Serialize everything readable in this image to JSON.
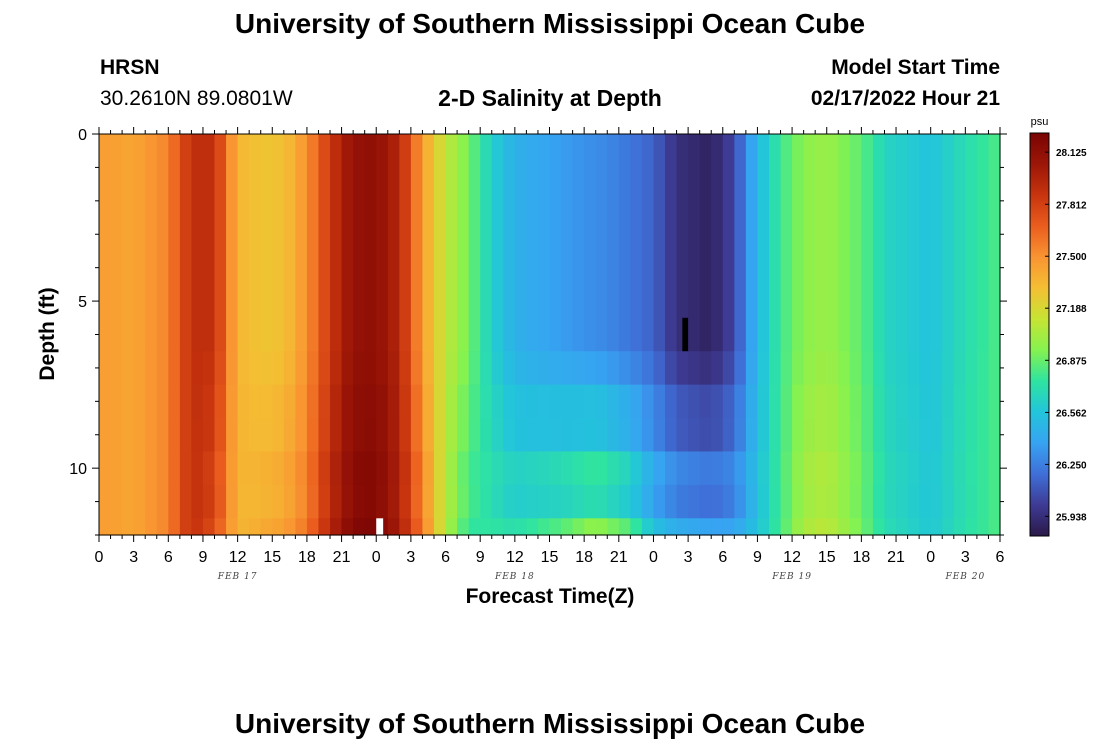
{
  "header": {
    "title": "University of Southern Mississippi Ocean Cube",
    "station": "HRSN",
    "coords": "30.2610N  89.0801W",
    "plot_title": "2-D Salinity at Depth",
    "model_start_label": "Model Start Time",
    "model_start_value": "02/17/2022 Hour 21"
  },
  "footer": {
    "title": "University of Southern Mississippi Ocean Cube"
  },
  "colors": {
    "stops": [
      "#2a1848",
      "#3e3b94",
      "#3f6fd8",
      "#37a3f2",
      "#22c5da",
      "#2fe4a0",
      "#86f24f",
      "#c6e434",
      "#f4bf33",
      "#f99432",
      "#ea5d1e",
      "#c7340e",
      "#9c1607",
      "#7a0403"
    ]
  },
  "chart_data": {
    "type": "heatmap",
    "title": "2-D Salinity at Depth",
    "xlabel": "Forecast Time(Z)",
    "ylabel": "Depth (ft)",
    "colorbar_unit": "psu",
    "value_range": [
      25.82,
      28.24
    ],
    "colorbar_ticks": [
      "28.125",
      "27.812",
      "27.500",
      "27.188",
      "26.875",
      "26.562",
      "26.250",
      "25.938"
    ],
    "x_ticks": [
      "0",
      "3",
      "6",
      "9",
      "12",
      "15",
      "18",
      "21",
      "0",
      "3",
      "6",
      "9",
      "12",
      "15",
      "18",
      "21",
      "0",
      "3",
      "6",
      "9",
      "12",
      "15",
      "18",
      "21",
      "0",
      "3",
      "6"
    ],
    "date_labels": [
      {
        "label": "FEB 17",
        "hour": 12
      },
      {
        "label": "FEB 18",
        "hour": 36
      },
      {
        "label": "FEB 19",
        "hour": 60
      },
      {
        "label": "FEB 20",
        "hour": 75
      }
    ],
    "x_range_hours": [
      0,
      78
    ],
    "y_ticks": [
      "0",
      "5",
      "10"
    ],
    "y_range_ft": [
      0,
      12
    ],
    "surface_profile": [
      {
        "hour": 0,
        "psu": 27.46
      },
      {
        "hour": 3,
        "psu": 27.42
      },
      {
        "hour": 6,
        "psu": 27.55
      },
      {
        "hour": 8,
        "psu": 27.9
      },
      {
        "hour": 10,
        "psu": 27.9
      },
      {
        "hour": 12,
        "psu": 27.35
      },
      {
        "hour": 14,
        "psu": 27.28
      },
      {
        "hour": 16,
        "psu": 27.3
      },
      {
        "hour": 18,
        "psu": 27.5
      },
      {
        "hour": 20,
        "psu": 27.85
      },
      {
        "hour": 22,
        "psu": 28.1
      },
      {
        "hour": 24,
        "psu": 28.12
      },
      {
        "hour": 26,
        "psu": 27.95
      },
      {
        "hour": 28,
        "psu": 27.45
      },
      {
        "hour": 30,
        "psu": 27.1
      },
      {
        "hour": 32,
        "psu": 26.9
      },
      {
        "hour": 34,
        "psu": 26.62
      },
      {
        "hour": 36,
        "psu": 26.45
      },
      {
        "hour": 40,
        "psu": 26.36
      },
      {
        "hour": 44,
        "psu": 26.28
      },
      {
        "hour": 48,
        "psu": 26.15
      },
      {
        "hour": 50,
        "psu": 25.95
      },
      {
        "hour": 53,
        "psu": 25.88
      },
      {
        "hour": 55,
        "psu": 26.05
      },
      {
        "hour": 57,
        "psu": 26.5
      },
      {
        "hour": 59,
        "psu": 26.78
      },
      {
        "hour": 61,
        "psu": 26.95
      },
      {
        "hour": 63,
        "psu": 27.0
      },
      {
        "hour": 66,
        "psu": 26.85
      },
      {
        "hour": 68,
        "psu": 26.65
      },
      {
        "hour": 72,
        "psu": 26.55
      },
      {
        "hour": 75,
        "psu": 26.7
      },
      {
        "hour": 78,
        "psu": 26.82
      }
    ],
    "deep_profile": [
      {
        "hour": 0,
        "psu": 27.46
      },
      {
        "hour": 3,
        "psu": 27.42
      },
      {
        "hour": 6,
        "psu": 27.55
      },
      {
        "hour": 8,
        "psu": 27.9
      },
      {
        "hour": 10,
        "psu": 27.75
      },
      {
        "hour": 12,
        "psu": 27.35
      },
      {
        "hour": 14,
        "psu": 27.4
      },
      {
        "hour": 16,
        "psu": 27.45
      },
      {
        "hour": 18,
        "psu": 27.6
      },
      {
        "hour": 20,
        "psu": 27.95
      },
      {
        "hour": 22,
        "psu": 28.2
      },
      {
        "hour": 24,
        "psu": 28.22
      },
      {
        "hour": 26,
        "psu": 28.0
      },
      {
        "hour": 28,
        "psu": 27.6
      },
      {
        "hour": 30,
        "psu": 27.05
      },
      {
        "hour": 32,
        "psu": 26.75
      },
      {
        "hour": 34,
        "psu": 26.75
      },
      {
        "hour": 36,
        "psu": 26.72
      },
      {
        "hour": 40,
        "psu": 26.85
      },
      {
        "hour": 43,
        "psu": 27.0
      },
      {
        "hour": 46,
        "psu": 26.85
      },
      {
        "hour": 48,
        "psu": 26.55
      },
      {
        "hour": 50,
        "psu": 26.45
      },
      {
        "hour": 53,
        "psu": 26.4
      },
      {
        "hour": 55,
        "psu": 26.4
      },
      {
        "hour": 57,
        "psu": 26.55
      },
      {
        "hour": 59,
        "psu": 26.8
      },
      {
        "hour": 61,
        "psu": 27.05
      },
      {
        "hour": 63,
        "psu": 27.1
      },
      {
        "hour": 66,
        "psu": 26.9
      },
      {
        "hour": 68,
        "psu": 26.7
      },
      {
        "hour": 72,
        "psu": 26.58
      },
      {
        "hour": 75,
        "psu": 26.72
      },
      {
        "hour": 78,
        "psu": 26.82
      }
    ],
    "gap_markers": [
      {
        "color": "#000000",
        "hour_start": 50.5,
        "hour_end": 51.0,
        "depth_start": 5.5,
        "depth_end": 6.5
      },
      {
        "color": "#ffffff",
        "hour_start": 24.0,
        "hour_end": 24.6,
        "depth_start": 11.5,
        "depth_end": 12.0
      }
    ]
  }
}
